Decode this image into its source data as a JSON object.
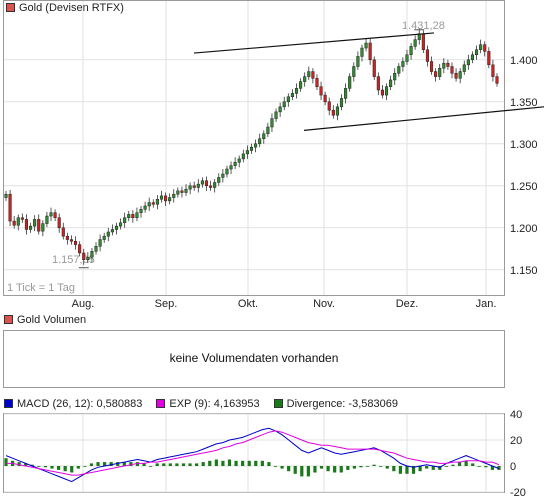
{
  "price_panel": {
    "legend_label": "Gold (Devisen RTFX)",
    "legend_color": "#d9534f",
    "high_label": "1.431,28",
    "low_label": "1.157,05",
    "tick_note": "1 Tick = 1 Tag"
  },
  "volume_panel": {
    "legend_label": "Gold Volumen",
    "legend_color": "#d9534f",
    "message": "keine Volumendaten vorhanden"
  },
  "macd_panel": {
    "macd_label": "MACD (26, 12): 0,580883",
    "macd_color": "#0000cc",
    "exp_label": "EXP (9): 4,163953",
    "exp_color": "#e000e0",
    "div_label": "Divergence: -3,583069",
    "div_color": "#1a7a1a"
  },
  "chart_data": [
    {
      "type": "candlestick",
      "x_tick_labels": [
        "Aug.",
        "Sep.",
        "Okt.",
        "Nov.",
        "Dez.",
        "Jan."
      ],
      "y_tick_labels": [
        "1.400",
        "1.350",
        "1.300",
        "1.250",
        "1.200",
        "1.150"
      ],
      "y_ticks": [
        1400,
        1350,
        1300,
        1250,
        1200,
        1150
      ],
      "ylim": [
        1120,
        1470
      ],
      "up_color": "#2e8b2e",
      "down_color": "#cc2222",
      "closes": [
        1240,
        1208,
        1203,
        1212,
        1210,
        1198,
        1202,
        1210,
        1196,
        1205,
        1214,
        1218,
        1212,
        1200,
        1190,
        1186,
        1184,
        1180,
        1170,
        1162,
        1165,
        1172,
        1178,
        1186,
        1190,
        1195,
        1198,
        1202,
        1206,
        1212,
        1216,
        1212,
        1218,
        1222,
        1226,
        1230,
        1228,
        1234,
        1238,
        1232,
        1236,
        1240,
        1244,
        1242,
        1246,
        1250,
        1248,
        1252,
        1256,
        1250,
        1248,
        1254,
        1260,
        1264,
        1270,
        1274,
        1278,
        1282,
        1288,
        1292,
        1296,
        1300,
        1306,
        1312,
        1320,
        1330,
        1338,
        1344,
        1350,
        1356,
        1360,
        1366,
        1374,
        1380,
        1386,
        1378,
        1368,
        1358,
        1350,
        1340,
        1334,
        1344,
        1354,
        1366,
        1380,
        1392,
        1404,
        1414,
        1420,
        1400,
        1380,
        1364,
        1358,
        1368,
        1376,
        1384,
        1392,
        1398,
        1406,
        1416,
        1424,
        1431,
        1412,
        1398,
        1386,
        1380,
        1390,
        1396,
        1392,
        1384,
        1378,
        1386,
        1394,
        1400,
        1406,
        1412,
        1418,
        1410,
        1394,
        1380,
        1372
      ],
      "trendlines": [
        {
          "from": [
            0.38,
            1408
          ],
          "to": [
            0.86,
            1432
          ]
        },
        {
          "from": [
            0.6,
            1316
          ],
          "to": [
            1.08,
            1344
          ]
        }
      ]
    },
    {
      "type": "line",
      "series": [
        {
          "name": "MACD (26, 12): 0,580883",
          "color": "#0000cc",
          "values": [
            8,
            6,
            4,
            2,
            0,
            -2,
            -4,
            -6,
            -8,
            -10,
            -12,
            -9,
            -6,
            -3,
            -1,
            0,
            1,
            2,
            3,
            4,
            5,
            4,
            3,
            5,
            6,
            7,
            8,
            9,
            10,
            11,
            13,
            15,
            17,
            18,
            20,
            21,
            22,
            24,
            26,
            28,
            29,
            27,
            24,
            20,
            16,
            12,
            10,
            12,
            14,
            12,
            10,
            9,
            10,
            11,
            12,
            13,
            14,
            12,
            9,
            6,
            2,
            0,
            -1,
            0,
            1,
            0,
            -1,
            2,
            4,
            6,
            8,
            6,
            4,
            2,
            0,
            -2
          ]
        },
        {
          "name": "EXP (9): 4,163953",
          "color": "#e000e0",
          "values": [
            2,
            2,
            1,
            0,
            -1,
            -2,
            -3,
            -4,
            -5,
            -6,
            -7,
            -7,
            -6,
            -5,
            -4,
            -3,
            -2,
            -1,
            0,
            1,
            2,
            2,
            3,
            3,
            4,
            5,
            6,
            7,
            8,
            9,
            10,
            11,
            12,
            14,
            15,
            17,
            18,
            20,
            22,
            24,
            26,
            27,
            26,
            24,
            22,
            20,
            18,
            17,
            16,
            16,
            15,
            14,
            13,
            13,
            13,
            13,
            13,
            12,
            11,
            10,
            8,
            6,
            5,
            4,
            3,
            3,
            2,
            2,
            3,
            3,
            4,
            4,
            4,
            3,
            3,
            1
          ]
        }
      ],
      "bar_series": {
        "name": "Divergence: -3,583069",
        "color": "#1a7a1a"
      },
      "y_tick_labels": [
        "40",
        "20",
        "0",
        "-20"
      ],
      "y_ticks": [
        40,
        20,
        0,
        -20
      ],
      "ylim": [
        -20,
        40
      ]
    }
  ]
}
